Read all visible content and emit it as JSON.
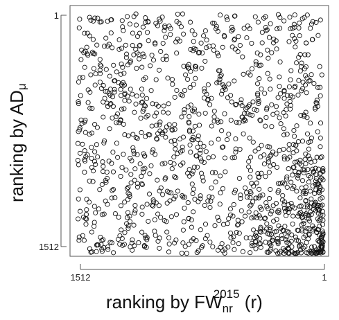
{
  "chart_data": {
    "type": "scatter",
    "title": "",
    "xlabel": {
      "base": "ranking by FW",
      "sub": "nr",
      "sup": "2015",
      "suffix": " (r)"
    },
    "ylabel": {
      "base": "ranking by AD",
      "sub": "μ"
    },
    "xlim": [
      1512,
      1
    ],
    "ylim": [
      1512,
      1
    ],
    "x_ticks": [
      "1512",
      "1"
    ],
    "y_ticks": [
      "1",
      "1512"
    ],
    "grid": false,
    "legend": "none",
    "marker": "open-circle",
    "point_color": "#111111",
    "n_points": 1512,
    "point_density_note": "points spread across whole plot; denser cluster toward bottom-right (x near 1, y near 1512)"
  }
}
